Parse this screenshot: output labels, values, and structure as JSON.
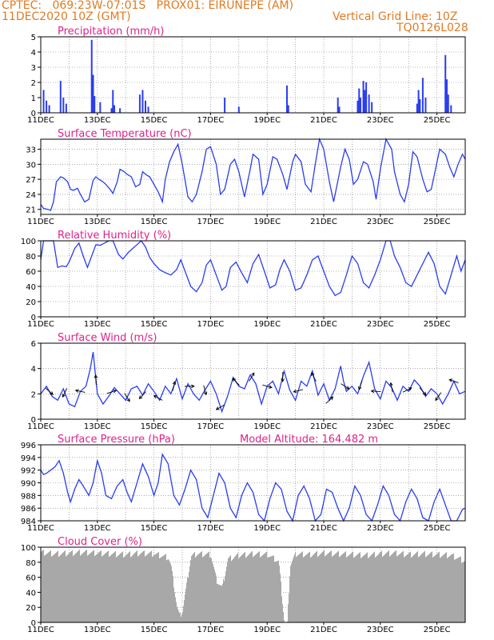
{
  "header": {
    "line1": "CPTEC:   069:23W-07:01S   PROX01: EIRUNEPE (AM)",
    "line2": "11DEC2020 10Z (GMT)",
    "grid_note": "Vertical Grid Line: 10Z",
    "run_id": "TQ0126L028"
  },
  "colors": {
    "header": "#e07b22",
    "panel_title": "#e0218a",
    "series": "#2a3df0",
    "cloud": "#a8a8a8",
    "grid": "#777777"
  },
  "x_ticks": [
    "11DEC",
    "13DEC",
    "15DEC",
    "17DEC",
    "19DEC",
    "21DEC",
    "23DEC",
    "25DEC"
  ],
  "chart_data": [
    {
      "id": "precip",
      "type": "bar",
      "title": "Precipitation (mm/h)",
      "ylim": [
        0,
        5
      ],
      "yticks": [
        0,
        1,
        2,
        3,
        4,
        5
      ],
      "x_range_days": [
        0,
        15
      ],
      "x": [
        0.1,
        0.2,
        0.3,
        0.7,
        0.8,
        0.9,
        1.8,
        1.85,
        1.9,
        2.1,
        2.5,
        2.55,
        2.6,
        2.8,
        3.5,
        3.6,
        3.7,
        3.8,
        6.5,
        7.0,
        8.7,
        8.75,
        10.5,
        10.55,
        11.2,
        11.25,
        11.3,
        11.4,
        11.45,
        11.5,
        11.6,
        11.7,
        13.3,
        13.35,
        13.4,
        13.5,
        13.6,
        14.3,
        14.35,
        14.4,
        14.5
      ],
      "values": [
        1.5,
        0.8,
        0.5,
        2.1,
        1.0,
        0.6,
        4.8,
        2.5,
        1.1,
        0.7,
        0.3,
        1.5,
        0.5,
        0.3,
        1.2,
        1.5,
        0.8,
        0.4,
        1.0,
        0.4,
        1.8,
        0.5,
        1.0,
        0.4,
        0.8,
        1.6,
        1.0,
        2.1,
        1.5,
        2.0,
        1.2,
        0.7,
        0.6,
        1.5,
        0.9,
        2.3,
        1.0,
        3.8,
        2.2,
        1.2,
        0.5
      ]
    },
    {
      "id": "temp",
      "type": "line",
      "title": "Surface Temperature (nC)",
      "ylim": [
        20,
        35
      ],
      "yticks": [
        21,
        24,
        27,
        30,
        33
      ],
      "x_range_days": [
        0,
        15
      ],
      "x": [
        0,
        0.1,
        0.25,
        0.35,
        0.45,
        0.55,
        0.7,
        0.8,
        0.95,
        1.05,
        1.15,
        1.3,
        1.4,
        1.55,
        1.7,
        1.85,
        1.95,
        2.05,
        2.2,
        2.3,
        2.45,
        2.55,
        2.7,
        2.8,
        2.95,
        3.05,
        3.2,
        3.35,
        3.5,
        3.6,
        3.75,
        3.85,
        4.0,
        4.15,
        4.3,
        4.4,
        4.55,
        4.7,
        4.85,
        5.0,
        5.2,
        5.35,
        5.5,
        5.7,
        5.85,
        6.0,
        6.2,
        6.35,
        6.5,
        6.7,
        6.85,
        7.0,
        7.2,
        7.4,
        7.5,
        7.7,
        7.85,
        8.0,
        8.2,
        8.35,
        8.55,
        8.7,
        8.9,
        9.0,
        9.2,
        9.35,
        9.55,
        9.7,
        9.85,
        10.0,
        10.2,
        10.35,
        10.6,
        10.75,
        10.9,
        11.05,
        11.2,
        11.4,
        11.55,
        11.75,
        11.85,
        12.0,
        12.2,
        12.4,
        12.5,
        12.7,
        12.85,
        13.0,
        13.15,
        13.3,
        13.5,
        13.65,
        13.8,
        13.95,
        14.1,
        14.3,
        14.45,
        14.6,
        14.75,
        14.9,
        15.0
      ],
      "values": [
        22,
        21.2,
        21,
        20.8,
        22.5,
        26.5,
        27.5,
        27.3,
        26.5,
        25.0,
        24.8,
        25.2,
        24.0,
        22.5,
        23.0,
        26.8,
        27.5,
        27.0,
        26.5,
        26.0,
        25.0,
        24.2,
        26.5,
        29.0,
        28.5,
        28.0,
        27.5,
        25.5,
        26.0,
        28.5,
        27.8,
        27.5,
        26.0,
        24.5,
        22.5,
        27.0,
        30.5,
        32.5,
        34.0,
        30.0,
        23.5,
        22.5,
        24.0,
        28.5,
        33.0,
        33.5,
        30.0,
        24.0,
        25.0,
        30.0,
        31.0,
        28.5,
        23.5,
        29.0,
        32.0,
        31.0,
        24.0,
        26.0,
        31.5,
        31.0,
        28.0,
        25.0,
        30.5,
        32.0,
        30.5,
        26.0,
        24.5,
        30.0,
        35.0,
        33.0,
        26.5,
        22.5,
        29.5,
        33.0,
        31.0,
        26.0,
        27.0,
        30.5,
        30.0,
        26.5,
        23.0,
        29.0,
        35.0,
        33.0,
        28.5,
        24.0,
        22.5,
        26.0,
        32.5,
        31.5,
        27.0,
        24.5,
        25.0,
        29.0,
        33.0,
        32.0,
        29.5,
        27.5,
        30.0,
        32.0,
        31.0
      ]
    },
    {
      "id": "rh",
      "type": "line",
      "title": "Relative Humidity (%)",
      "ylim": [
        0,
        100
      ],
      "yticks": [
        0,
        20,
        40,
        60,
        80,
        100
      ],
      "x_range_days": [
        0,
        15
      ],
      "x": [
        0,
        0.1,
        0.25,
        0.45,
        0.6,
        0.75,
        0.9,
        1.0,
        1.2,
        1.35,
        1.5,
        1.65,
        1.8,
        1.95,
        2.1,
        2.25,
        2.4,
        2.55,
        2.75,
        2.9,
        3.1,
        3.25,
        3.4,
        3.55,
        3.7,
        3.85,
        4.0,
        4.2,
        4.4,
        4.6,
        4.8,
        4.95,
        5.1,
        5.3,
        5.5,
        5.7,
        5.85,
        6.0,
        6.2,
        6.4,
        6.55,
        6.7,
        6.9,
        7.1,
        7.3,
        7.5,
        7.7,
        7.9,
        8.1,
        8.3,
        8.45,
        8.6,
        8.8,
        9.0,
        9.2,
        9.4,
        9.6,
        9.8,
        10.0,
        10.2,
        10.4,
        10.6,
        10.8,
        11.0,
        11.2,
        11.4,
        11.6,
        11.8,
        12.0,
        12.2,
        12.35,
        12.5,
        12.7,
        12.9,
        13.1,
        13.3,
        13.5,
        13.7,
        13.9,
        14.1,
        14.3,
        14.5,
        14.7,
        14.85,
        15.0
      ],
      "values": [
        75,
        100,
        100,
        100,
        65,
        67,
        66,
        72,
        90,
        97,
        80,
        65,
        80,
        95,
        94,
        97,
        100,
        100,
        82,
        76,
        85,
        90,
        95,
        100,
        92,
        78,
        70,
        62,
        58,
        55,
        62,
        75,
        60,
        40,
        33,
        45,
        68,
        75,
        55,
        35,
        40,
        65,
        72,
        58,
        45,
        70,
        82,
        60,
        38,
        42,
        62,
        75,
        60,
        35,
        38,
        55,
        75,
        80,
        60,
        40,
        28,
        32,
        55,
        80,
        70,
        45,
        38,
        55,
        75,
        100,
        100,
        80,
        65,
        45,
        40,
        55,
        70,
        85,
        70,
        40,
        30,
        55,
        80,
        60,
        75
      ]
    },
    {
      "id": "wind",
      "type": "line",
      "title": "Surface Wind (m/s)",
      "ylim": [
        0,
        6
      ],
      "yticks": [
        0,
        2,
        4,
        6
      ],
      "x_range_days": [
        0,
        15
      ],
      "x": [
        0,
        0.2,
        0.4,
        0.6,
        0.8,
        1.0,
        1.2,
        1.4,
        1.6,
        1.75,
        1.85,
        2.0,
        2.2,
        2.4,
        2.6,
        2.8,
        3.0,
        3.2,
        3.4,
        3.6,
        3.8,
        4.0,
        4.2,
        4.4,
        4.6,
        4.8,
        5.0,
        5.2,
        5.4,
        5.6,
        5.8,
        6.0,
        6.2,
        6.4,
        6.6,
        6.8,
        7.0,
        7.2,
        7.4,
        7.6,
        7.8,
        8.0,
        8.2,
        8.4,
        8.6,
        8.8,
        9.0,
        9.2,
        9.4,
        9.6,
        9.8,
        10.0,
        10.2,
        10.4,
        10.6,
        10.7,
        10.8,
        11.0,
        11.2,
        11.4,
        11.6,
        11.8,
        12.0,
        12.2,
        12.4,
        12.6,
        12.8,
        13.0,
        13.2,
        13.4,
        13.6,
        13.8,
        14.0,
        14.2,
        14.4,
        14.6,
        14.8,
        15.0
      ],
      "values": [
        2.0,
        2.6,
        1.8,
        1.5,
        2.4,
        1.2,
        1.0,
        2.2,
        2.6,
        4.0,
        5.3,
        2.0,
        1.2,
        1.8,
        2.5,
        2.0,
        1.5,
        2.4,
        2.6,
        1.9,
        2.8,
        2.2,
        1.5,
        2.6,
        2.0,
        3.2,
        1.6,
        2.8,
        2.0,
        1.5,
        2.3,
        3.0,
        2.0,
        0.6,
        1.8,
        3.3,
        2.6,
        2.4,
        3.5,
        2.8,
        1.2,
        2.6,
        3.0,
        2.0,
        3.8,
        2.3,
        1.5,
        3.0,
        2.6,
        3.8,
        1.9,
        2.8,
        1.5,
        2.4,
        4.2,
        3.0,
        2.2,
        2.6,
        2.0,
        3.4,
        4.5,
        2.4,
        1.6,
        3.0,
        2.5,
        1.5,
        2.6,
        2.2,
        3.1,
        2.6,
        1.8,
        2.4,
        2.0,
        1.2,
        2.0,
        3.0,
        2.0,
        2.2
      ]
    },
    {
      "id": "pressure",
      "type": "line",
      "title": "Surface Pressure (hPa)",
      "annotation": "Model Altitude: 164.482 m",
      "ylim": [
        984,
        996
      ],
      "yticks": [
        984,
        986,
        988,
        990,
        992,
        994,
        996
      ],
      "x_range_days": [
        0,
        15
      ],
      "x": [
        0,
        0.1,
        0.2,
        0.35,
        0.5,
        0.65,
        0.8,
        0.95,
        1.05,
        1.2,
        1.35,
        1.5,
        1.7,
        1.85,
        2.0,
        2.15,
        2.3,
        2.5,
        2.7,
        2.9,
        3.05,
        3.2,
        3.4,
        3.6,
        3.8,
        4.0,
        4.15,
        4.3,
        4.5,
        4.7,
        4.9,
        5.1,
        5.3,
        5.5,
        5.7,
        5.9,
        6.1,
        6.3,
        6.5,
        6.7,
        6.9,
        7.1,
        7.3,
        7.5,
        7.7,
        7.9,
        8.1,
        8.3,
        8.5,
        8.7,
        8.9,
        9.1,
        9.3,
        9.5,
        9.7,
        9.9,
        10.1,
        10.3,
        10.5,
        10.7,
        10.9,
        11.1,
        11.3,
        11.5,
        11.7,
        11.9,
        12.1,
        12.3,
        12.5,
        12.7,
        12.9,
        13.1,
        13.3,
        13.5,
        13.7,
        13.9,
        14.1,
        14.3,
        14.5,
        14.7,
        14.9,
        15.0
      ],
      "values": [
        992.0,
        991.3,
        991.5,
        992.0,
        992.5,
        993.5,
        991.5,
        988.5,
        987.0,
        989.0,
        990.5,
        989.5,
        988.0,
        990.0,
        993.5,
        991.5,
        988.0,
        987.5,
        989.5,
        990.5,
        988.5,
        987.0,
        990.0,
        993.0,
        991.0,
        988.0,
        990.0,
        994.5,
        993.0,
        988.0,
        986.5,
        989.0,
        992.0,
        990.5,
        986.0,
        984.5,
        988.0,
        991.5,
        990.0,
        986.0,
        984.5,
        988.0,
        990.0,
        988.5,
        985.0,
        983.5,
        987.5,
        990.0,
        989.0,
        985.5,
        984.0,
        988.0,
        989.5,
        987.5,
        984.0,
        985.0,
        989.0,
        988.5,
        986.0,
        983.5,
        986.0,
        989.5,
        988.0,
        985.0,
        983.0,
        986.5,
        989.5,
        988.0,
        985.0,
        983.5,
        987.0,
        989.0,
        987.5,
        984.5,
        983.0,
        987.0,
        989.0,
        986.5,
        983.0,
        984.0,
        985.8,
        986.0
      ]
    },
    {
      "id": "cloud",
      "type": "area",
      "title": "Cloud Cover (%)",
      "ylim": [
        0,
        100
      ],
      "yticks": [
        0,
        20,
        40,
        60,
        80,
        100
      ],
      "x_range_days": [
        0,
        15
      ],
      "x": [
        0,
        0.5,
        1.0,
        1.5,
        2.0,
        2.5,
        3.0,
        3.5,
        4.0,
        4.5,
        4.6,
        4.8,
        4.9,
        5.0,
        5.3,
        5.5,
        6.0,
        6.2,
        6.4,
        6.6,
        7.0,
        7.5,
        8.0,
        8.4,
        8.6,
        8.7,
        8.8,
        9.0,
        9.5,
        10.0,
        10.5,
        11.0,
        11.5,
        12.0,
        12.5,
        13.0,
        13.5,
        14.0,
        14.5,
        15.0
      ],
      "values": [
        97,
        95,
        96,
        97,
        96,
        95,
        94,
        96,
        95,
        90,
        78,
        25,
        12,
        20,
        92,
        95,
        94,
        60,
        50,
        88,
        93,
        95,
        94,
        85,
        3,
        2,
        80,
        95,
        94,
        96,
        95,
        94,
        93,
        95,
        96,
        94,
        95,
        94,
        93,
        85
      ]
    }
  ]
}
